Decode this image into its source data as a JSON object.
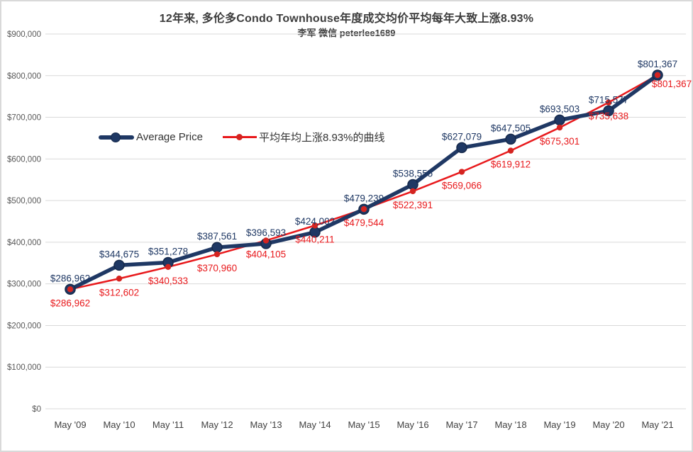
{
  "header": {
    "title": "12年来, 多伦多Condo Townhouse年度成交均价平均每年大致上涨8.93%",
    "subtitle": "李军 微信 peterlee1689"
  },
  "legend": [
    {
      "label": "Average Price",
      "color": "#1f3864"
    },
    {
      "label": "平均年均上涨8.93%的曲线",
      "color": "#e8191c"
    }
  ],
  "colors": {
    "navy": "#1f3864",
    "navy_marker_edge": "#16294a",
    "red": "#e8191c",
    "red_marker": "#d42420",
    "grid": "#d9d9d9",
    "axis_text": "#595959",
    "x_text": "#404040",
    "border": "#d9d9d9"
  },
  "chart_data": {
    "type": "line",
    "title": "12年来, 多伦多Condo Townhouse年度成交均价平均每年大致上涨8.93%",
    "subtitle": "李军 微信 peterlee1689",
    "categories": [
      "May '09",
      "May '10",
      "May '11",
      "May '12",
      "May '13",
      "May '14",
      "May '15",
      "May '16",
      "May '17",
      "May '18",
      "May '19",
      "May '20",
      "May '21"
    ],
    "series": [
      {
        "name": "Average Price",
        "color": "#1f3864",
        "values": [
          286962,
          344675,
          351278,
          387561,
          396593,
          424002,
          479239,
          538555,
          627079,
          647505,
          693503,
          715577,
          801367
        ],
        "labels": [
          "$286,962",
          "$344,675",
          "$351,278",
          "$387,561",
          "$396,593",
          "$424,002",
          "$479,239",
          "$538,555",
          "$627,079",
          "$647,505",
          "$693,503",
          "$715,577",
          "$801,367"
        ]
      },
      {
        "name": "平均年均上涨8.93%的曲线",
        "color": "#e8191c",
        "values": [
          286962,
          312602,
          340533,
          370960,
          404105,
          440211,
          479544,
          522391,
          569066,
          619912,
          675301,
          735638,
          801367
        ],
        "labels": [
          "$286,962",
          "$312,602",
          "$340,533",
          "$370,960",
          "$404,105",
          "$440,211",
          "$479,544",
          "$522,391",
          "$569,066",
          "$619,912",
          "$675,301",
          "$735,638",
          "$801,367"
        ]
      }
    ],
    "xlabel": "",
    "ylabel": "",
    "ylim": [
      0,
      900000
    ],
    "y_tick_step": 100000,
    "y_tick_labels": [
      "$0",
      "$100,000",
      "$200,000",
      "$300,000",
      "$400,000",
      "$500,000",
      "$600,000",
      "$700,000",
      "$800,000",
      "$900,000"
    ],
    "grid": true,
    "legend_position": "inside-top-left"
  }
}
